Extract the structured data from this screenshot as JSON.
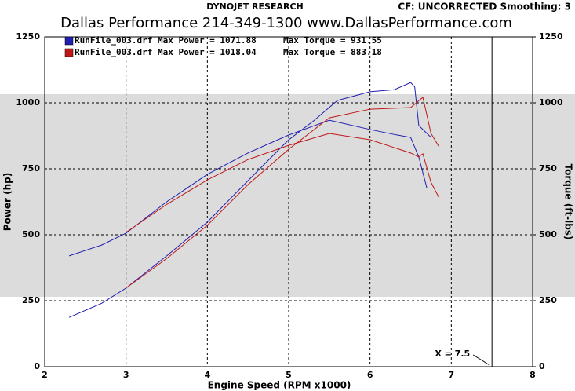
{
  "chart_data": {
    "type": "line",
    "header": "DYNOJET RESEARCH",
    "settings_label": "CF: UNCORRECTED  Smoothing: 3",
    "title": "Dallas Performance   214-349-1300   www.DallasPerformance.com",
    "x_label": "Engine Speed (RPM x1000)",
    "y_label": "Power (hp)",
    "y2_label": "Torque (ft-lbs)",
    "xlim": [
      2,
      8
    ],
    "xticks": [
      2,
      3,
      4,
      5,
      6,
      7,
      8
    ],
    "ylim": [
      0,
      1250
    ],
    "yticks": [
      0,
      250,
      500,
      750,
      1000,
      1250
    ],
    "y2lim": [
      0,
      1250
    ],
    "y2ticks": [
      0,
      250,
      500,
      750,
      1000,
      1250
    ],
    "grid": true,
    "cursor": {
      "value": 7.5,
      "label": "X = 7.5"
    },
    "runs": [
      {
        "label": "RunFile_003.drf Max Power = 1071.88",
        "torque_label": "Max Torque = 931.55",
        "color": "#1f1fb0",
        "power": {
          "x": [
            2.3,
            2.7,
            3.0,
            3.5,
            4.0,
            4.5,
            5.0,
            5.3,
            5.6,
            6.0,
            6.3,
            6.5,
            6.55,
            6.6,
            6.75
          ],
          "values": [
            187,
            240,
            298,
            420,
            548,
            705,
            860,
            930,
            1009,
            1042,
            1050,
            1077,
            1060,
            914,
            869
          ]
        },
        "torque": {
          "x": [
            2.3,
            2.7,
            3.0,
            3.5,
            4.0,
            4.5,
            5.0,
            5.5,
            6.0,
            6.3,
            6.5,
            6.6,
            6.7
          ],
          "values": [
            420,
            461,
            506,
            625,
            729,
            810,
            878,
            934,
            899,
            880,
            869,
            795,
            676
          ]
        }
      },
      {
        "label": "RunFile_003.drf Max Power = 1018.04",
        "torque_label": "Max Torque = 883.18",
        "color": "#c01818",
        "power": {
          "x": [
            3.0,
            3.5,
            4.0,
            4.5,
            5.0,
            5.5,
            6.0,
            6.5,
            6.65,
            6.75,
            6.85
          ],
          "values": [
            298,
            410,
            536,
            690,
            824,
            943,
            976,
            982,
            1021,
            884,
            833
          ]
        },
        "torque": {
          "x": [
            3.0,
            3.5,
            4.0,
            4.5,
            5.0,
            5.5,
            6.0,
            6.5,
            6.6,
            6.65,
            6.75,
            6.85
          ],
          "values": [
            509,
            615,
            708,
            785,
            839,
            884,
            860,
            810,
            795,
            807,
            699,
            640
          ]
        }
      }
    ]
  }
}
